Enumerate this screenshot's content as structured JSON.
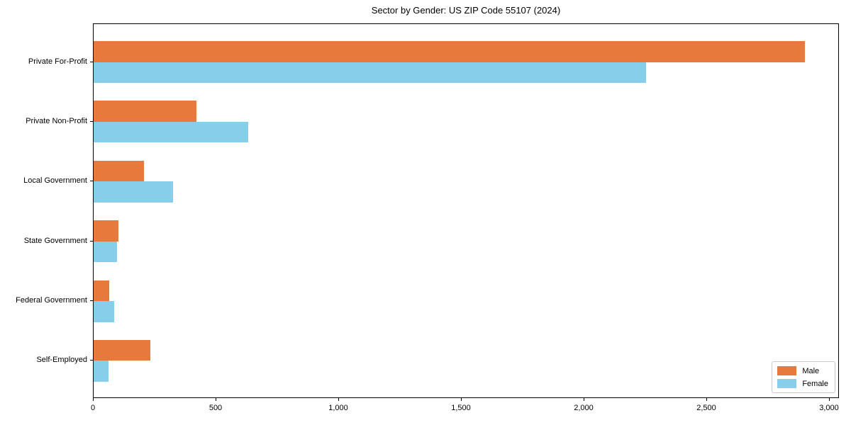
{
  "title": "Sector by Gender: US ZIP Code 55107 (2024)",
  "chart_data": {
    "type": "bar",
    "orientation": "horizontal",
    "title": "Sector by Gender: US ZIP Code 55107 (2024)",
    "categories": [
      "Private For-Profit",
      "Private Non-Profit",
      "Local Government",
      "State Government",
      "Federal Government",
      "Self-Employed"
    ],
    "series": [
      {
        "name": "Male",
        "color": "#e8793d",
        "values": [
          2900,
          420,
          205,
          100,
          65,
          230
        ]
      },
      {
        "name": "Female",
        "color": "#87ceeb",
        "values": [
          2250,
          630,
          325,
          95,
          85,
          60
        ]
      }
    ],
    "xlabel": "",
    "ylabel": "",
    "xlim": [
      0,
      3000
    ],
    "xticks": [
      0,
      500,
      1000,
      1500,
      2000,
      2500,
      3000
    ],
    "xtick_labels": [
      "0",
      "500",
      "1,000",
      "1,500",
      "2,000",
      "2,500",
      "3,000"
    ],
    "grid": false,
    "legend_position": "lower right"
  },
  "legend": {
    "items": [
      {
        "label": "Male",
        "color": "#e8793d"
      },
      {
        "label": "Female",
        "color": "#87ceeb"
      }
    ]
  }
}
